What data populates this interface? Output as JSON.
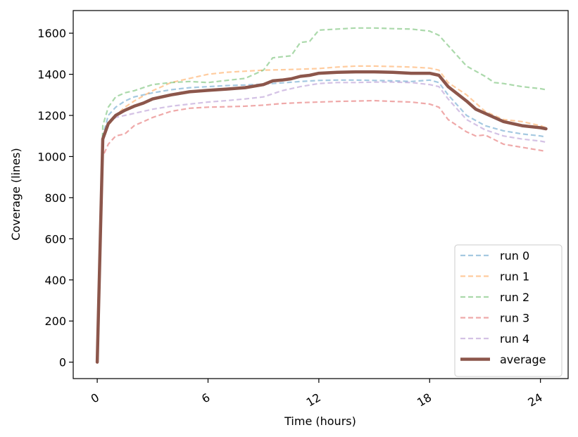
{
  "chart_data": {
    "type": "line",
    "title": "",
    "xlabel": "Time (hours)",
    "ylabel": "Coverage (lines)",
    "xlim": [
      -1.3,
      25.5
    ],
    "ylim": [
      -80,
      1710
    ],
    "xticks": [
      0,
      6,
      12,
      18,
      24
    ],
    "xtick_labels": [
      "0",
      "6",
      "12",
      "18",
      "24"
    ],
    "yticks": [
      0,
      200,
      400,
      600,
      800,
      1000,
      1200,
      1400,
      1600
    ],
    "ytick_labels": [
      "0",
      "200",
      "400",
      "600",
      "800",
      "1000",
      "1200",
      "1400",
      "1600"
    ],
    "grid": false,
    "legend_position": "lower-right",
    "series": [
      {
        "name": "run 0",
        "color": "#1f77b4",
        "style": "dashed",
        "points": [
          [
            0,
            0
          ],
          [
            0.3,
            1100
          ],
          [
            0.6,
            1200
          ],
          [
            1,
            1240
          ],
          [
            1.5,
            1270
          ],
          [
            2,
            1290
          ],
          [
            3,
            1310
          ],
          [
            4,
            1325
          ],
          [
            5,
            1335
          ],
          [
            6,
            1340
          ],
          [
            7,
            1345
          ],
          [
            8,
            1348
          ],
          [
            9,
            1352
          ],
          [
            10,
            1358
          ],
          [
            11,
            1365
          ],
          [
            12,
            1370
          ],
          [
            13,
            1372
          ],
          [
            14,
            1372
          ],
          [
            15,
            1370
          ],
          [
            16,
            1368
          ],
          [
            17,
            1365
          ],
          [
            18,
            1372
          ],
          [
            18.5,
            1360
          ],
          [
            19,
            1300
          ],
          [
            20,
            1200
          ],
          [
            21,
            1150
          ],
          [
            22,
            1125
          ],
          [
            23,
            1110
          ],
          [
            24,
            1100
          ],
          [
            24.3,
            1095
          ]
        ]
      },
      {
        "name": "run 1",
        "color": "#ff7f0e",
        "style": "dashed",
        "points": [
          [
            0,
            0
          ],
          [
            0.3,
            1080
          ],
          [
            0.6,
            1150
          ],
          [
            1,
            1200
          ],
          [
            1.5,
            1240
          ],
          [
            2,
            1270
          ],
          [
            3,
            1320
          ],
          [
            4,
            1360
          ],
          [
            5,
            1380
          ],
          [
            6,
            1400
          ],
          [
            7,
            1410
          ],
          [
            8,
            1415
          ],
          [
            9,
            1420
          ],
          [
            10,
            1422
          ],
          [
            11,
            1425
          ],
          [
            12,
            1428
          ],
          [
            13,
            1435
          ],
          [
            14,
            1440
          ],
          [
            15,
            1440
          ],
          [
            16,
            1438
          ],
          [
            17,
            1435
          ],
          [
            18,
            1430
          ],
          [
            18.5,
            1420
          ],
          [
            19,
            1360
          ],
          [
            20,
            1300
          ],
          [
            21,
            1220
          ],
          [
            22,
            1180
          ],
          [
            23,
            1170
          ],
          [
            24,
            1150
          ],
          [
            24.3,
            1140
          ]
        ]
      },
      {
        "name": "run 2",
        "color": "#2ca02c",
        "style": "dashed",
        "points": [
          [
            0,
            0
          ],
          [
            0.3,
            1150
          ],
          [
            0.6,
            1240
          ],
          [
            1,
            1290
          ],
          [
            1.5,
            1310
          ],
          [
            2,
            1320
          ],
          [
            3,
            1350
          ],
          [
            4,
            1360
          ],
          [
            5,
            1365
          ],
          [
            6,
            1360
          ],
          [
            7,
            1370
          ],
          [
            8,
            1380
          ],
          [
            9,
            1420
          ],
          [
            9.5,
            1480
          ],
          [
            10,
            1485
          ],
          [
            10.5,
            1490
          ],
          [
            11,
            1555
          ],
          [
            11.5,
            1560
          ],
          [
            12,
            1615
          ],
          [
            13,
            1620
          ],
          [
            14,
            1625
          ],
          [
            15,
            1625
          ],
          [
            16,
            1622
          ],
          [
            17,
            1620
          ],
          [
            18,
            1610
          ],
          [
            18.5,
            1590
          ],
          [
            19,
            1540
          ],
          [
            20,
            1440
          ],
          [
            21,
            1390
          ],
          [
            21.5,
            1360
          ],
          [
            22,
            1355
          ],
          [
            23,
            1340
          ],
          [
            24,
            1330
          ],
          [
            24.3,
            1325
          ]
        ]
      },
      {
        "name": "run 3",
        "color": "#d62728",
        "style": "dashed",
        "points": [
          [
            0,
            0
          ],
          [
            0.3,
            1000
          ],
          [
            0.6,
            1060
          ],
          [
            1,
            1100
          ],
          [
            1.5,
            1110
          ],
          [
            2,
            1150
          ],
          [
            2.5,
            1170
          ],
          [
            3,
            1190
          ],
          [
            4,
            1220
          ],
          [
            5,
            1235
          ],
          [
            6,
            1240
          ],
          [
            7,
            1242
          ],
          [
            8,
            1245
          ],
          [
            9,
            1250
          ],
          [
            10,
            1258
          ],
          [
            11,
            1262
          ],
          [
            12,
            1265
          ],
          [
            13,
            1268
          ],
          [
            14,
            1270
          ],
          [
            15,
            1272
          ],
          [
            16,
            1268
          ],
          [
            17,
            1265
          ],
          [
            18,
            1255
          ],
          [
            18.5,
            1240
          ],
          [
            19,
            1180
          ],
          [
            20,
            1120
          ],
          [
            20.5,
            1100
          ],
          [
            21,
            1105
          ],
          [
            22,
            1060
          ],
          [
            23,
            1045
          ],
          [
            24,
            1030
          ],
          [
            24.3,
            1025
          ]
        ]
      },
      {
        "name": "run 4",
        "color": "#9467bd",
        "style": "dashed",
        "points": [
          [
            0,
            0
          ],
          [
            0.3,
            1090
          ],
          [
            0.6,
            1160
          ],
          [
            1,
            1190
          ],
          [
            1.5,
            1200
          ],
          [
            2,
            1210
          ],
          [
            3,
            1230
          ],
          [
            4,
            1245
          ],
          [
            5,
            1255
          ],
          [
            6,
            1265
          ],
          [
            7,
            1272
          ],
          [
            8,
            1280
          ],
          [
            9,
            1290
          ],
          [
            10,
            1320
          ],
          [
            11,
            1340
          ],
          [
            12,
            1355
          ],
          [
            13,
            1360
          ],
          [
            14,
            1360
          ],
          [
            15,
            1362
          ],
          [
            16,
            1362
          ],
          [
            17,
            1360
          ],
          [
            18,
            1350
          ],
          [
            18.5,
            1340
          ],
          [
            19,
            1280
          ],
          [
            20,
            1180
          ],
          [
            21,
            1130
          ],
          [
            22,
            1100
          ],
          [
            23,
            1085
          ],
          [
            24,
            1075
          ],
          [
            24.3,
            1070
          ]
        ]
      },
      {
        "name": "average",
        "color": "#8c564b",
        "style": "solid",
        "points": [
          [
            0,
            0
          ],
          [
            0.3,
            1085
          ],
          [
            0.6,
            1160
          ],
          [
            1,
            1200
          ],
          [
            1.5,
            1225
          ],
          [
            2,
            1245
          ],
          [
            2.5,
            1260
          ],
          [
            3,
            1280
          ],
          [
            4,
            1300
          ],
          [
            5,
            1315
          ],
          [
            6,
            1322
          ],
          [
            7,
            1328
          ],
          [
            8,
            1335
          ],
          [
            9,
            1350
          ],
          [
            9.5,
            1368
          ],
          [
            10,
            1372
          ],
          [
            10.5,
            1378
          ],
          [
            11,
            1390
          ],
          [
            11.5,
            1395
          ],
          [
            12,
            1405
          ],
          [
            13,
            1410
          ],
          [
            14,
            1412
          ],
          [
            15,
            1412
          ],
          [
            16,
            1410
          ],
          [
            17,
            1405
          ],
          [
            18,
            1405
          ],
          [
            18.5,
            1395
          ],
          [
            19,
            1340
          ],
          [
            20,
            1270
          ],
          [
            20.5,
            1230
          ],
          [
            21,
            1210
          ],
          [
            21.5,
            1190
          ],
          [
            22,
            1170
          ],
          [
            23,
            1150
          ],
          [
            24,
            1140
          ],
          [
            24.3,
            1135
          ]
        ]
      }
    ]
  }
}
